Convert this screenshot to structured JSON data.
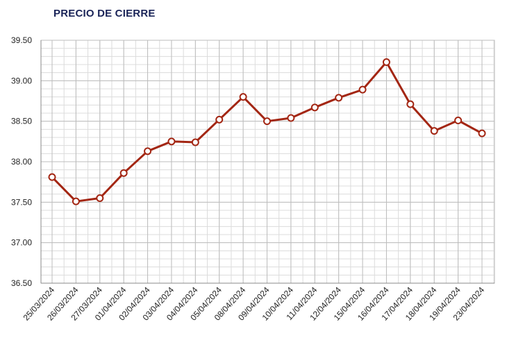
{
  "chart_data": {
    "type": "line",
    "title": "PRECIO DE CIERRE",
    "xlabel": "",
    "ylabel": "",
    "categories": [
      "25/03/2024",
      "26/03/2024",
      "27/03/2024",
      "01/04/2024",
      "02/04/2024",
      "03/04/2024",
      "04/04/2024",
      "05/04/2024",
      "08/04/2024",
      "09/04/2024",
      "10/04/2024",
      "11/04/2024",
      "12/04/2024",
      "15/04/2024",
      "16/04/2024",
      "17/04/2024",
      "18/04/2024",
      "19/04/2024",
      "23/04/2024"
    ],
    "series": [
      {
        "values": [
          37.81,
          37.51,
          37.55,
          37.86,
          38.13,
          38.25,
          38.24,
          38.52,
          38.8,
          38.5,
          38.54,
          38.67,
          38.79,
          38.89,
          39.23,
          38.71,
          38.38,
          38.51,
          38.35
        ]
      }
    ],
    "ylim": [
      36.5,
      39.5
    ],
    "yticks": [
      "36.50",
      "37.00",
      "37.50",
      "38.00",
      "38.50",
      "39.00",
      "39.50"
    ],
    "grid": true,
    "colors": {
      "line": "#a32613",
      "marker_fill": "#ffffff",
      "grid": "#c8c8c8",
      "title": "#1a2458"
    }
  }
}
